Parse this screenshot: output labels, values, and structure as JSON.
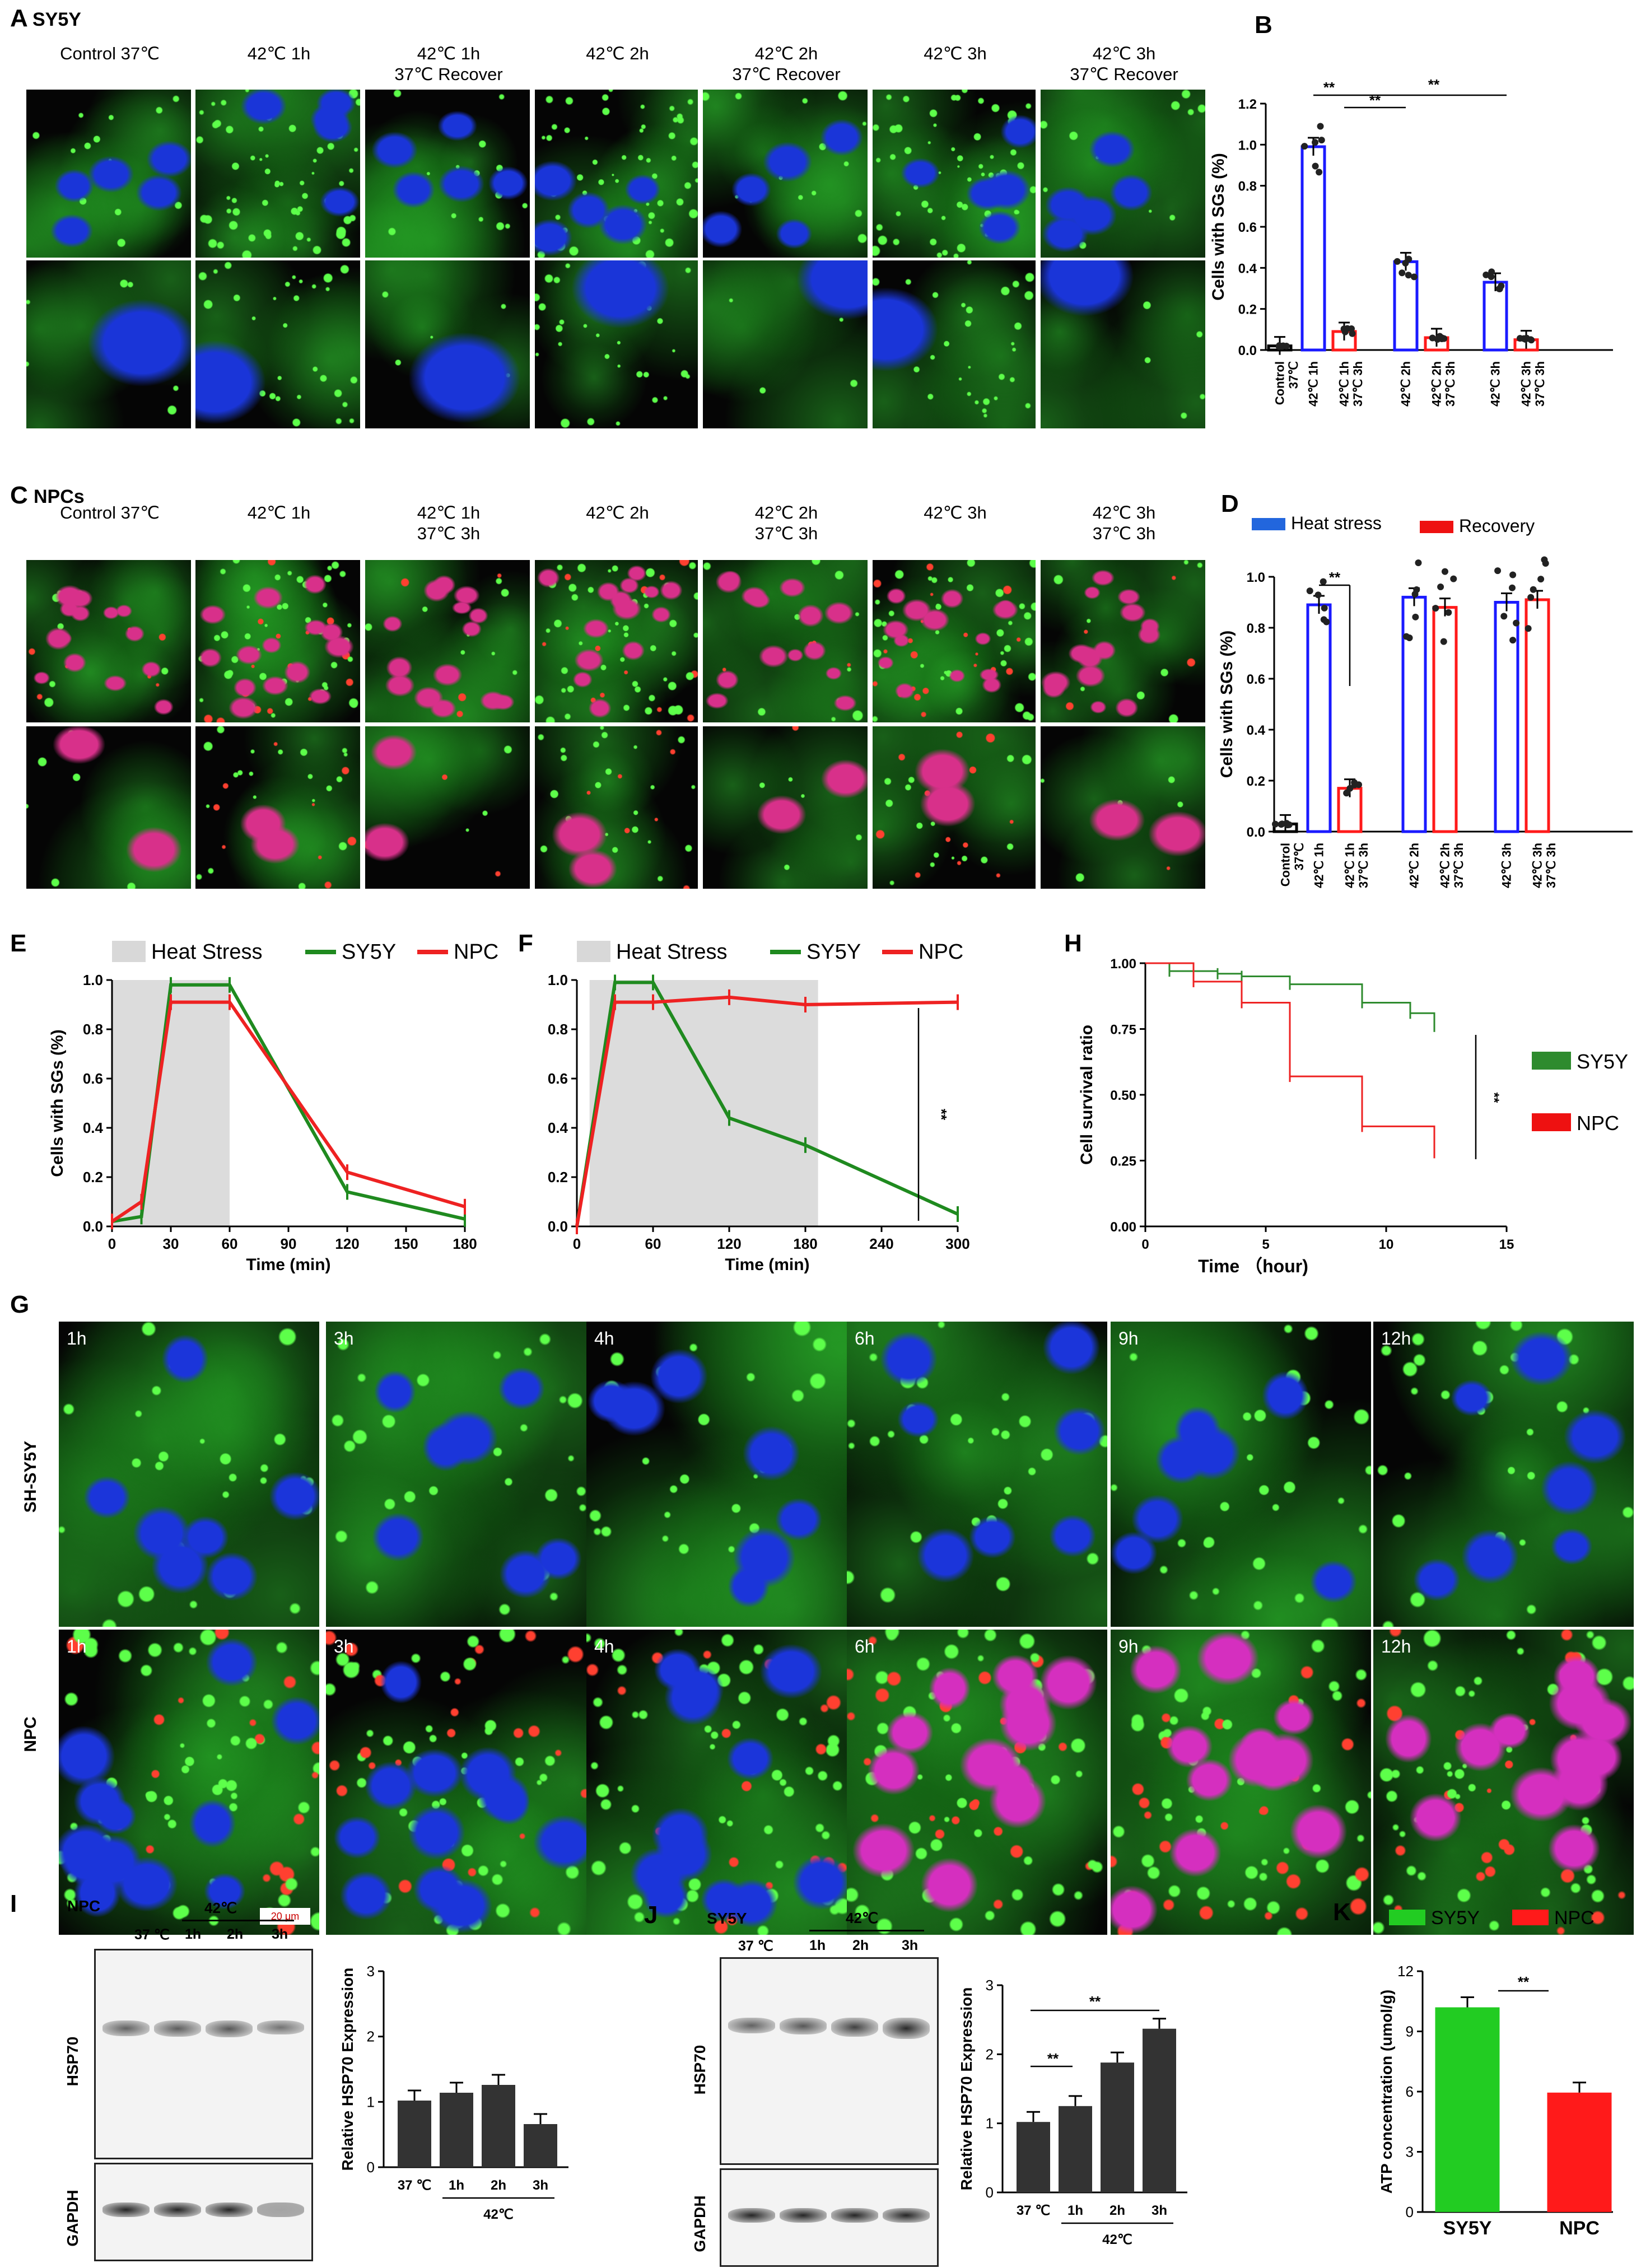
{
  "panelA": {
    "letter": "A",
    "name": "SY5Y",
    "columns": [
      "Control 37℃",
      "42℃ 1h",
      "42℃ 1h\n37℃ Recover",
      "42℃ 2h",
      "42℃ 2h\n37℃ Recover",
      "42℃ 3h",
      "42℃ 3h\n37℃ Recover"
    ]
  },
  "panelB": {
    "letter": "B",
    "chart_data": {
      "type": "bar",
      "ylabel": "Cells with SGs (%)",
      "ylim": [
        0,
        1.2
      ],
      "yticks": [
        "0.0",
        "0.2",
        "0.4",
        "0.6",
        "0.8",
        "1.0",
        "1.2"
      ],
      "categories": [
        "Control\n37℃",
        "42℃ 1h",
        "42℃ 1h\n37℃ 3h",
        "42℃ 2h",
        "42℃ 2h\n37℃ 3h",
        "42℃ 3h",
        "42℃ 3h\n37℃ 3h"
      ],
      "values": [
        0.02,
        0.99,
        0.09,
        0.43,
        0.06,
        0.33,
        0.05
      ],
      "colors": [
        "#000000",
        "#1a1aff",
        "#ff1a1a",
        "#1a1aff",
        "#ff1a1a",
        "#1a1aff",
        "#ff1a1a"
      ],
      "significance": [
        "**",
        "**",
        "**"
      ]
    }
  },
  "panelC": {
    "letter": "C",
    "name": "NPCs",
    "columns": [
      "Control 37℃",
      "42℃ 1h",
      "42℃ 1h\n37℃ 3h",
      "42℃ 2h",
      "42℃ 2h\n37℃ 3h",
      "42℃ 3h",
      "42℃ 3h\n37℃ 3h"
    ]
  },
  "panelD": {
    "letter": "D",
    "chart_data": {
      "type": "bar",
      "ylabel": "Cells with SGs (%)",
      "ylim": [
        0,
        1.0
      ],
      "yticks": [
        "0.0",
        "0.2",
        "0.4",
        "0.6",
        "0.8",
        "1.0"
      ],
      "legend": [
        "Heat stress",
        "Recovery"
      ],
      "categories": [
        "Control\n37℃",
        "42℃ 1h",
        "42℃ 1h\n37℃ 3h",
        "42℃ 2h",
        "42℃ 2h\n37℃ 3h",
        "42℃ 3h",
        "42℃ 3h\n37℃ 3h"
      ],
      "values": [
        0.03,
        0.89,
        0.17,
        0.92,
        0.88,
        0.9,
        0.91
      ],
      "colors": [
        "#000000",
        "#1a1aff",
        "#ff1a1a",
        "#1a1aff",
        "#ff1a1a",
        "#1a1aff",
        "#ff1a1a"
      ],
      "significance": [
        "**"
      ]
    }
  },
  "panelE": {
    "letter": "E",
    "chart_data": {
      "type": "line",
      "legend": [
        "Heat Stress",
        "SY5Y",
        "NPC"
      ],
      "xlabel": "Time (min)",
      "ylabel": "Cells with SGs (%)",
      "xlim": [
        0,
        180
      ],
      "ylim": [
        0,
        1.0
      ],
      "xticks": [
        "0",
        "30",
        "60",
        "90",
        "120",
        "150",
        "180"
      ],
      "yticks": [
        "0.0",
        "0.2",
        "0.4",
        "0.6",
        "0.8",
        "1.0"
      ],
      "shade": [
        0,
        60
      ],
      "series": [
        {
          "name": "SY5Y",
          "color": "#1f8a1f",
          "x": [
            0,
            15,
            30,
            60,
            120,
            180
          ],
          "y": [
            0.02,
            0.04,
            0.98,
            0.98,
            0.14,
            0.03
          ]
        },
        {
          "name": "NPC",
          "color": "#ee2222",
          "x": [
            0,
            15,
            30,
            60,
            120,
            180
          ],
          "y": [
            0.02,
            0.1,
            0.91,
            0.91,
            0.22,
            0.08
          ]
        }
      ]
    }
  },
  "panelF": {
    "letter": "F",
    "chart_data": {
      "type": "line",
      "legend": [
        "Heat Stress",
        "SY5Y",
        "NPC"
      ],
      "xlabel": "Time (min)",
      "xlim": [
        0,
        300
      ],
      "ylim": [
        0,
        1.0
      ],
      "xticks": [
        "0",
        "60",
        "120",
        "180",
        "240",
        "300"
      ],
      "yticks": [
        "0.0",
        "0.2",
        "0.4",
        "0.6",
        "0.8",
        "1.0"
      ],
      "shade": [
        10,
        190
      ],
      "significance": "**",
      "series": [
        {
          "name": "SY5Y",
          "color": "#1f8a1f",
          "x": [
            0,
            30,
            60,
            120,
            180,
            300
          ],
          "y": [
            0.0,
            0.99,
            0.99,
            0.44,
            0.33,
            0.05
          ]
        },
        {
          "name": "NPC",
          "color": "#ee2222",
          "x": [
            0,
            30,
            60,
            120,
            180,
            300
          ],
          "y": [
            0.0,
            0.91,
            0.91,
            0.93,
            0.9,
            0.91
          ]
        }
      ]
    }
  },
  "panelH": {
    "letter": "H",
    "chart_data": {
      "type": "line",
      "xlabel": "Time （hour)",
      "ylabel": "Cell survival ratio",
      "xlim": [
        0,
        15
      ],
      "ylim": [
        0,
        1.0
      ],
      "xticks": [
        "0",
        "5",
        "10",
        "15"
      ],
      "yticks": [
        "0.00",
        "0.25",
        "0.50",
        "0.75",
        "1.00"
      ],
      "significance": "**",
      "series": [
        {
          "name": "SY5Y",
          "color": "#2e8b2e",
          "x": [
            0,
            1,
            3,
            4,
            6,
            9,
            11,
            12
          ],
          "y": [
            1.0,
            0.97,
            0.96,
            0.95,
            0.92,
            0.85,
            0.81,
            0.76
          ]
        },
        {
          "name": "NPC",
          "color": "#ee2222",
          "x": [
            0,
            2,
            4,
            6,
            9,
            12
          ],
          "y": [
            1.0,
            0.93,
            0.85,
            0.57,
            0.38,
            0.28
          ]
        }
      ]
    }
  },
  "panelG": {
    "letter": "G",
    "rows": [
      "SH-SY5Y",
      "NPC"
    ],
    "times": [
      "1h",
      "3h",
      "4h",
      "6h",
      "9h",
      "12h"
    ],
    "scalebar": "20 μm"
  },
  "panelI": {
    "letter": "I",
    "name": "NPC",
    "temp": "42℃",
    "lanes": [
      "37 ℃",
      "1h",
      "2h",
      "3h"
    ],
    "bands": [
      "HSP70",
      "GAPDH"
    ],
    "chart_data": {
      "type": "bar",
      "ylabel": "Relative HSP70 Expression",
      "ylim": [
        0,
        3
      ],
      "yticks": [
        "0",
        "1",
        "2",
        "3"
      ],
      "categories": [
        "37 ℃",
        "1h",
        "2h",
        "3h"
      ],
      "group_label": "42℃",
      "values": [
        1.02,
        1.14,
        1.26,
        0.66
      ]
    }
  },
  "panelJ": {
    "letter": "J",
    "name": "SY5Y",
    "temp": "42℃",
    "lanes": [
      "37 ℃",
      "1h",
      "2h",
      "3h"
    ],
    "bands": [
      "HSP70",
      "GAPDH"
    ],
    "chart_data": {
      "type": "bar",
      "ylabel": "Relative HSP70 Expression",
      "ylim": [
        0,
        3
      ],
      "yticks": [
        "0",
        "1",
        "2",
        "3"
      ],
      "categories": [
        "37 ℃",
        "1h",
        "2h",
        "3h"
      ],
      "group_label": "42℃",
      "values": [
        1.02,
        1.25,
        1.88,
        2.37
      ],
      "significance": [
        "**",
        "**"
      ]
    }
  },
  "panelK": {
    "letter": "K",
    "chart_data": {
      "type": "bar",
      "legend": [
        "SY5Y",
        "NPC"
      ],
      "ylabel": "ATP concentration (umol/g)",
      "ylim": [
        0,
        12
      ],
      "yticks": [
        "0",
        "3",
        "6",
        "9",
        "12"
      ],
      "categories": [
        "SY5Y",
        "NPC"
      ],
      "values": [
        10.2,
        5.95
      ],
      "colors": [
        "#22cc22",
        "#ff1a1a"
      ],
      "significance": "**"
    }
  }
}
